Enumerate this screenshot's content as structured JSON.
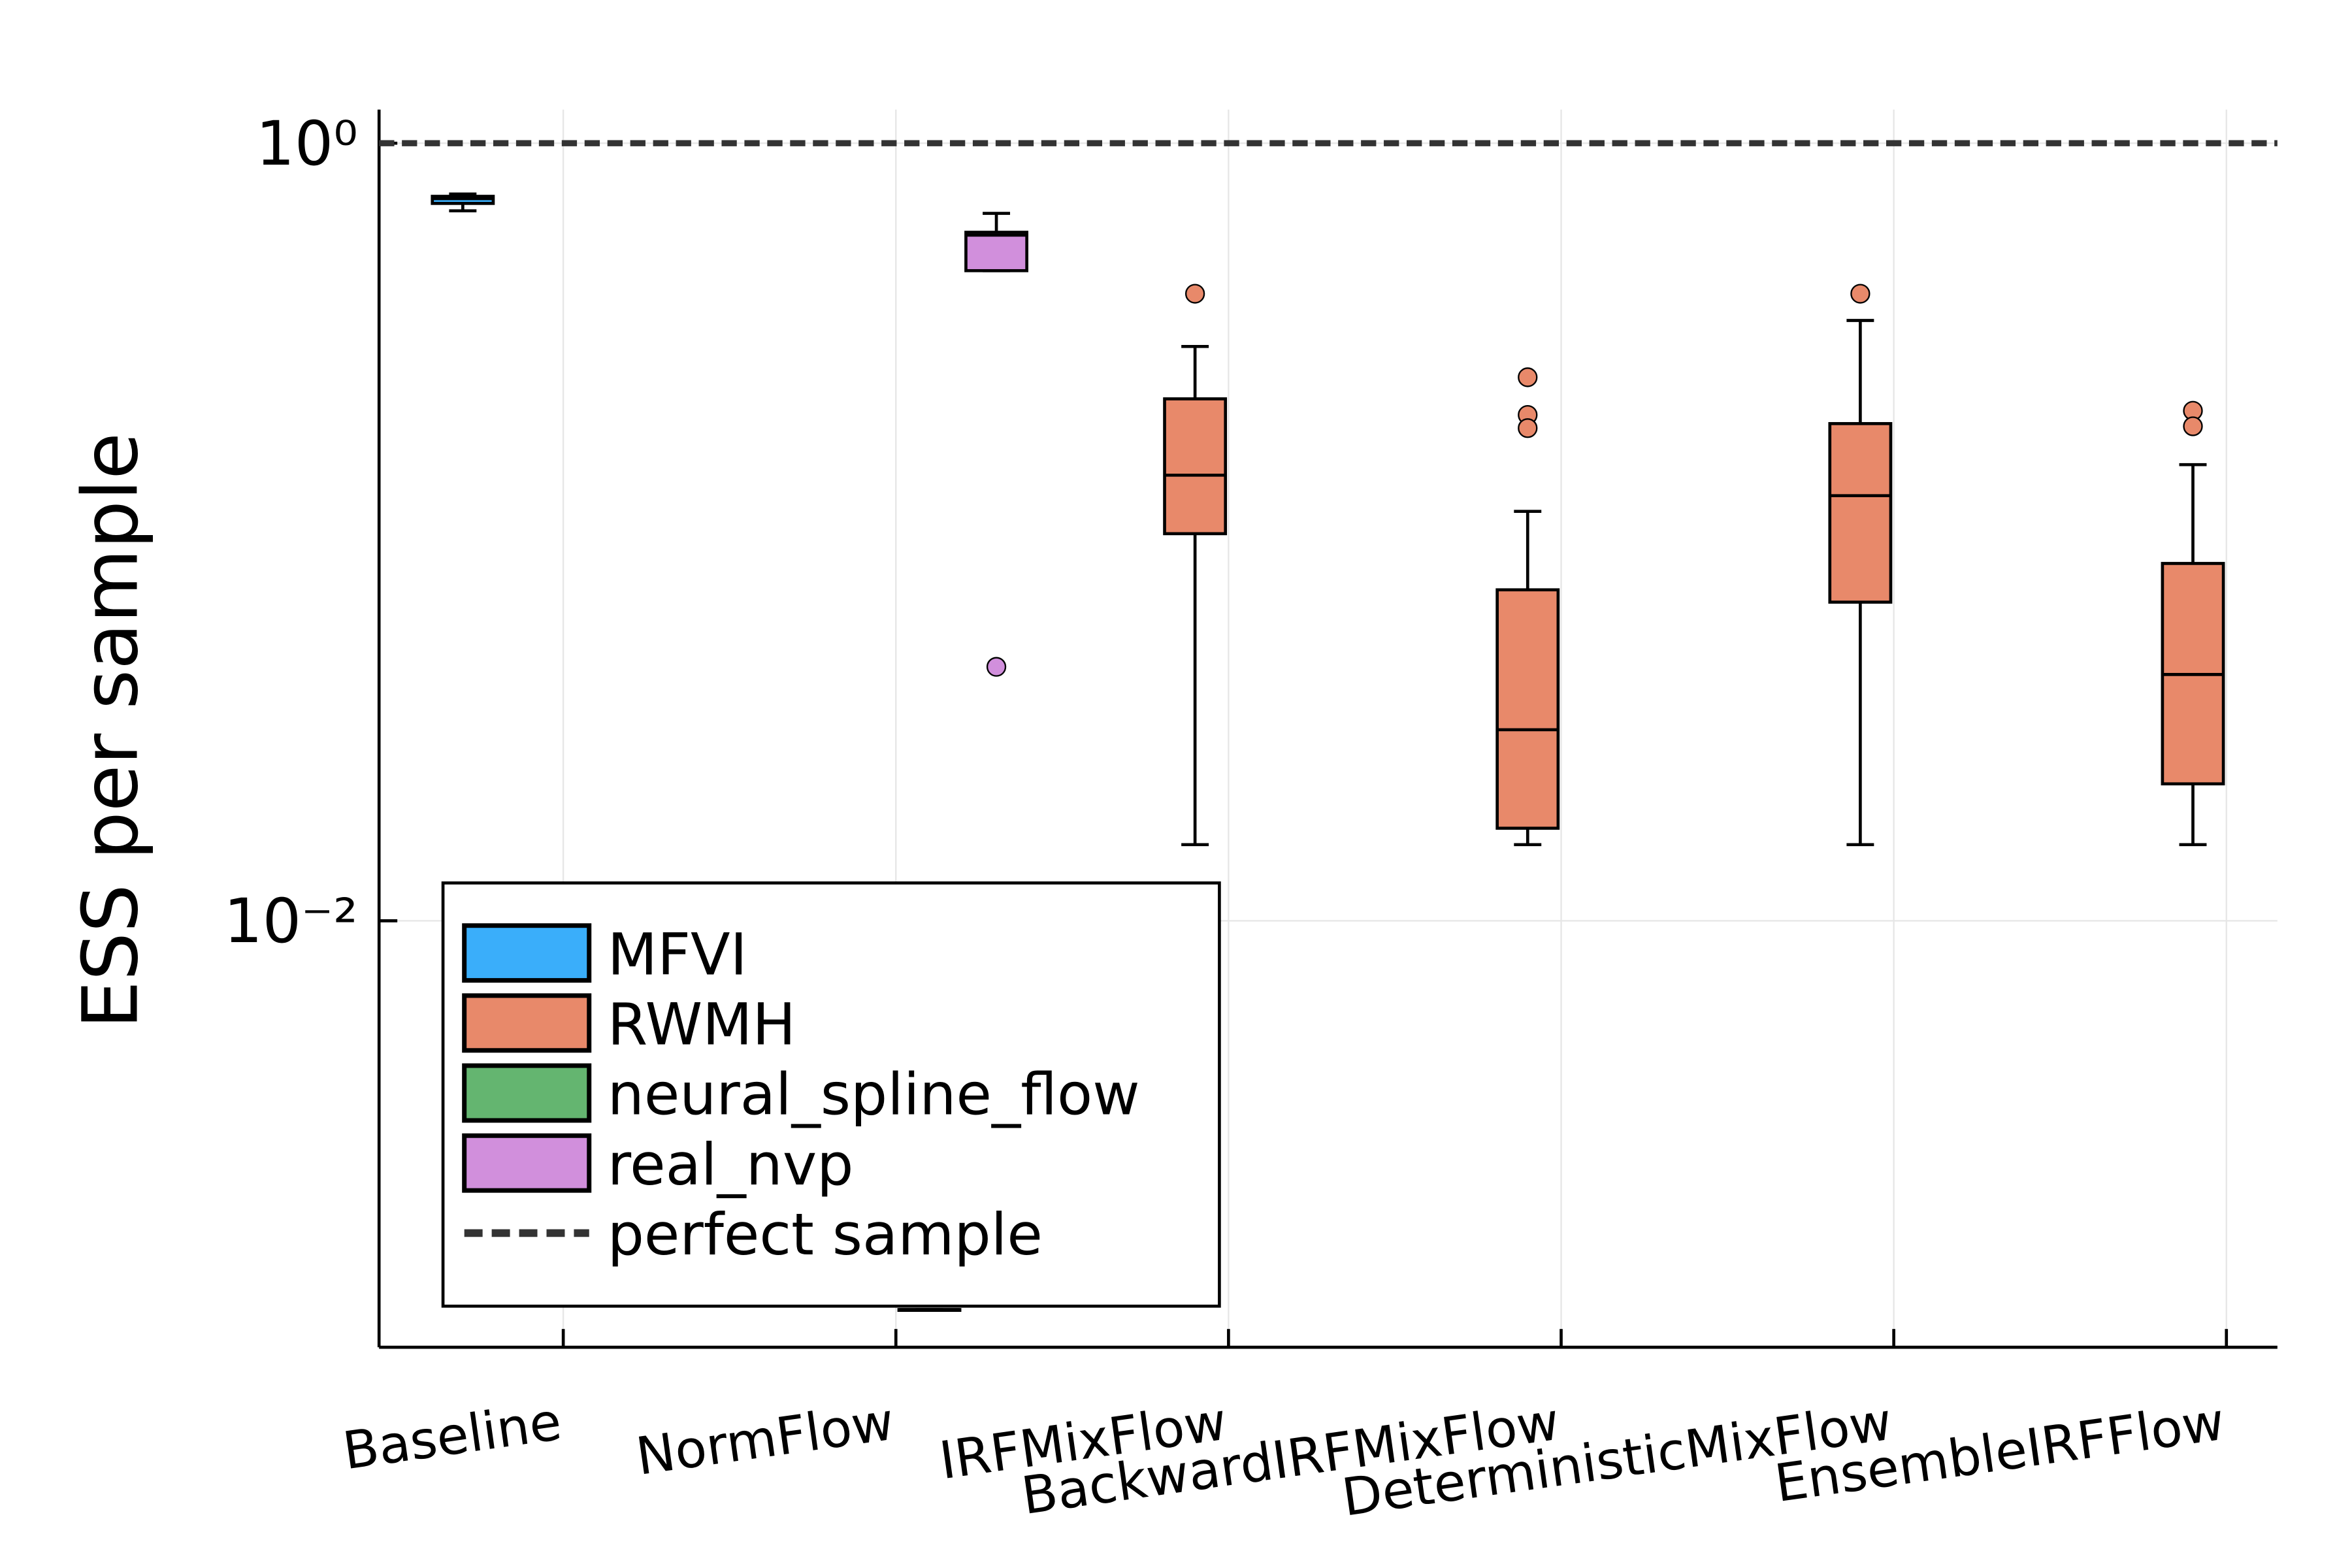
{
  "chart_data": {
    "type": "box",
    "y_label": "ESS per sample",
    "categories": [
      "Baseline",
      "NormFlow",
      "IRFMixFlow",
      "BackwardIRFMixFlow",
      "DeterministicMixFlow",
      "EnsembleIRFFlow"
    ],
    "log_scale": true,
    "grid": true,
    "legend_position": "bottom-left",
    "ylim": [
      0.0008,
      1.22
    ],
    "yticks": [
      {
        "value": 1,
        "label": "10⁰"
      },
      {
        "value": 0.01,
        "label": "10⁻²"
      }
    ],
    "series": [
      {
        "name": "MFVI",
        "color": "#3aaefa",
        "boxes": [
          {
            "low": 0.67,
            "q1": 0.7,
            "median": 0.72,
            "q3": 0.73,
            "high": 0.74,
            "outliers": []
          },
          null,
          null,
          null,
          null,
          null
        ]
      },
      {
        "name": "RWMH",
        "color": "#e8896a",
        "boxes": [
          null,
          null,
          {
            "low": 0.0157,
            "q1": 0.099,
            "median": 0.14,
            "q3": 0.22,
            "high": 0.3,
            "outliers": [
              0.41
            ]
          },
          {
            "low": 0.0157,
            "q1": 0.0173,
            "median": 0.031,
            "q3": 0.071,
            "high": 0.113,
            "outliers": [
              0.25,
              0.2,
              0.185
            ]
          },
          {
            "low": 0.0157,
            "q1": 0.066,
            "median": 0.124,
            "q3": 0.19,
            "high": 0.35,
            "outliers": [
              0.41
            ]
          },
          {
            "low": 0.0157,
            "q1": 0.0225,
            "median": 0.043,
            "q3": 0.083,
            "high": 0.149,
            "outliers": [
              0.205,
              0.187
            ]
          }
        ]
      },
      {
        "name": "neural_spline_flow",
        "color": "#64b570",
        "boxes": [
          null,
          {
            "low": 0.001,
            "q1": 0.001,
            "median": 0.001,
            "q3": 0.001,
            "high": 0.001,
            "outliers": []
          },
          null,
          null,
          null,
          null
        ]
      },
      {
        "name": "real_nvp",
        "color": "#d18fdc",
        "boxes": [
          null,
          {
            "low": 0.47,
            "q1": 0.47,
            "median": 0.58,
            "q3": 0.59,
            "high": 0.66,
            "outliers": [
              0.045
            ]
          },
          null,
          null,
          null,
          null
        ]
      }
    ],
    "reference_line": {
      "name": "perfect sample",
      "value": 1,
      "color": "#333333"
    }
  }
}
